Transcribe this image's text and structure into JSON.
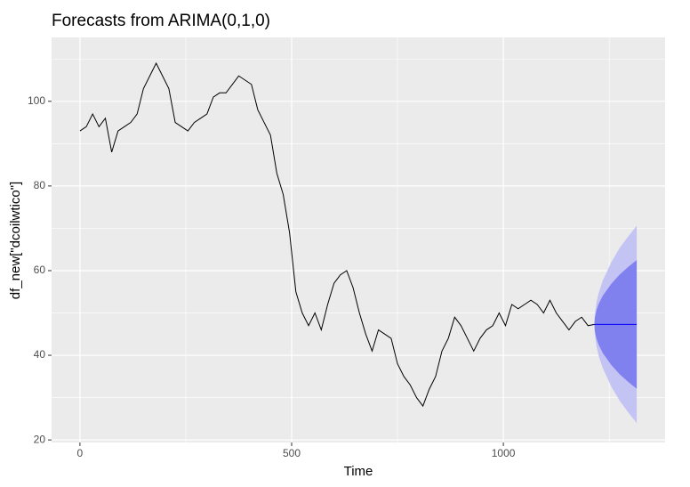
{
  "chart_data": {
    "type": "forecast",
    "title": "Forecasts from ARIMA(0,1,0)",
    "x_label": "Time",
    "y_label": "df_new[\"dcoilwtico\"]",
    "xlim": [
      -67,
      1382
    ],
    "ylim": [
      19.4,
      115.1
    ],
    "xticks": [
      0,
      500,
      1000
    ],
    "yticks": [
      20,
      40,
      60,
      80,
      100
    ],
    "grid": true,
    "history": {
      "color": "#000000",
      "x": [
        0,
        15,
        30,
        45,
        60,
        75,
        90,
        105,
        120,
        135,
        150,
        165,
        180,
        195,
        210,
        225,
        240,
        255,
        270,
        285,
        300,
        315,
        330,
        345,
        360,
        375,
        390,
        405,
        420,
        435,
        450,
        465,
        480,
        495,
        510,
        525,
        540,
        555,
        570,
        585,
        600,
        615,
        630,
        645,
        660,
        675,
        690,
        705,
        720,
        735,
        750,
        765,
        780,
        795,
        810,
        825,
        840,
        855,
        870,
        885,
        900,
        915,
        930,
        945,
        960,
        975,
        990,
        1005,
        1020,
        1035,
        1050,
        1065,
        1080,
        1095,
        1110,
        1125,
        1140,
        1155,
        1170,
        1185,
        1200,
        1215
      ],
      "values": [
        93,
        94,
        97,
        94,
        96,
        88,
        93,
        94,
        95,
        97,
        103,
        106,
        109,
        106,
        103,
        95,
        94,
        93,
        95,
        96,
        97,
        101,
        102,
        102,
        104,
        106,
        105,
        104,
        98,
        95,
        92,
        83,
        78,
        69,
        55,
        50,
        47,
        50,
        46,
        52,
        57,
        59,
        60,
        56,
        50,
        45,
        41,
        46,
        45,
        44,
        38,
        35,
        33,
        30,
        28,
        32,
        35,
        41,
        44,
        49,
        47,
        44,
        41,
        44,
        46,
        47,
        50,
        47,
        52,
        51,
        52,
        53,
        52,
        50,
        53,
        50,
        48,
        46,
        48,
        49,
        47,
        47.3
      ]
    },
    "forecast": {
      "line_color": "#0000ff",
      "color80": "#8080ef",
      "color95": "#c3c3f4",
      "x": [
        1215,
        1216,
        1220,
        1225,
        1235,
        1255,
        1275,
        1295,
        1315
      ],
      "mean": [
        47.3,
        47.3,
        47.3,
        47.3,
        47.3,
        47.3,
        47.3,
        47.3,
        47.3
      ],
      "lo80": [
        47.3,
        45.8,
        43.9,
        42.5,
        40.5,
        37.7,
        35.5,
        33.7,
        32.1
      ],
      "hi80": [
        47.3,
        48.8,
        50.7,
        52.1,
        54.1,
        56.9,
        59.1,
        60.9,
        62.5
      ],
      "lo95": [
        47.3,
        45,
        42.1,
        39.9,
        36.9,
        32.6,
        29.2,
        26.5,
        24
      ],
      "hi95": [
        47.3,
        49.6,
        52.5,
        54.7,
        57.7,
        62,
        65.4,
        68.1,
        70.6
      ]
    }
  }
}
